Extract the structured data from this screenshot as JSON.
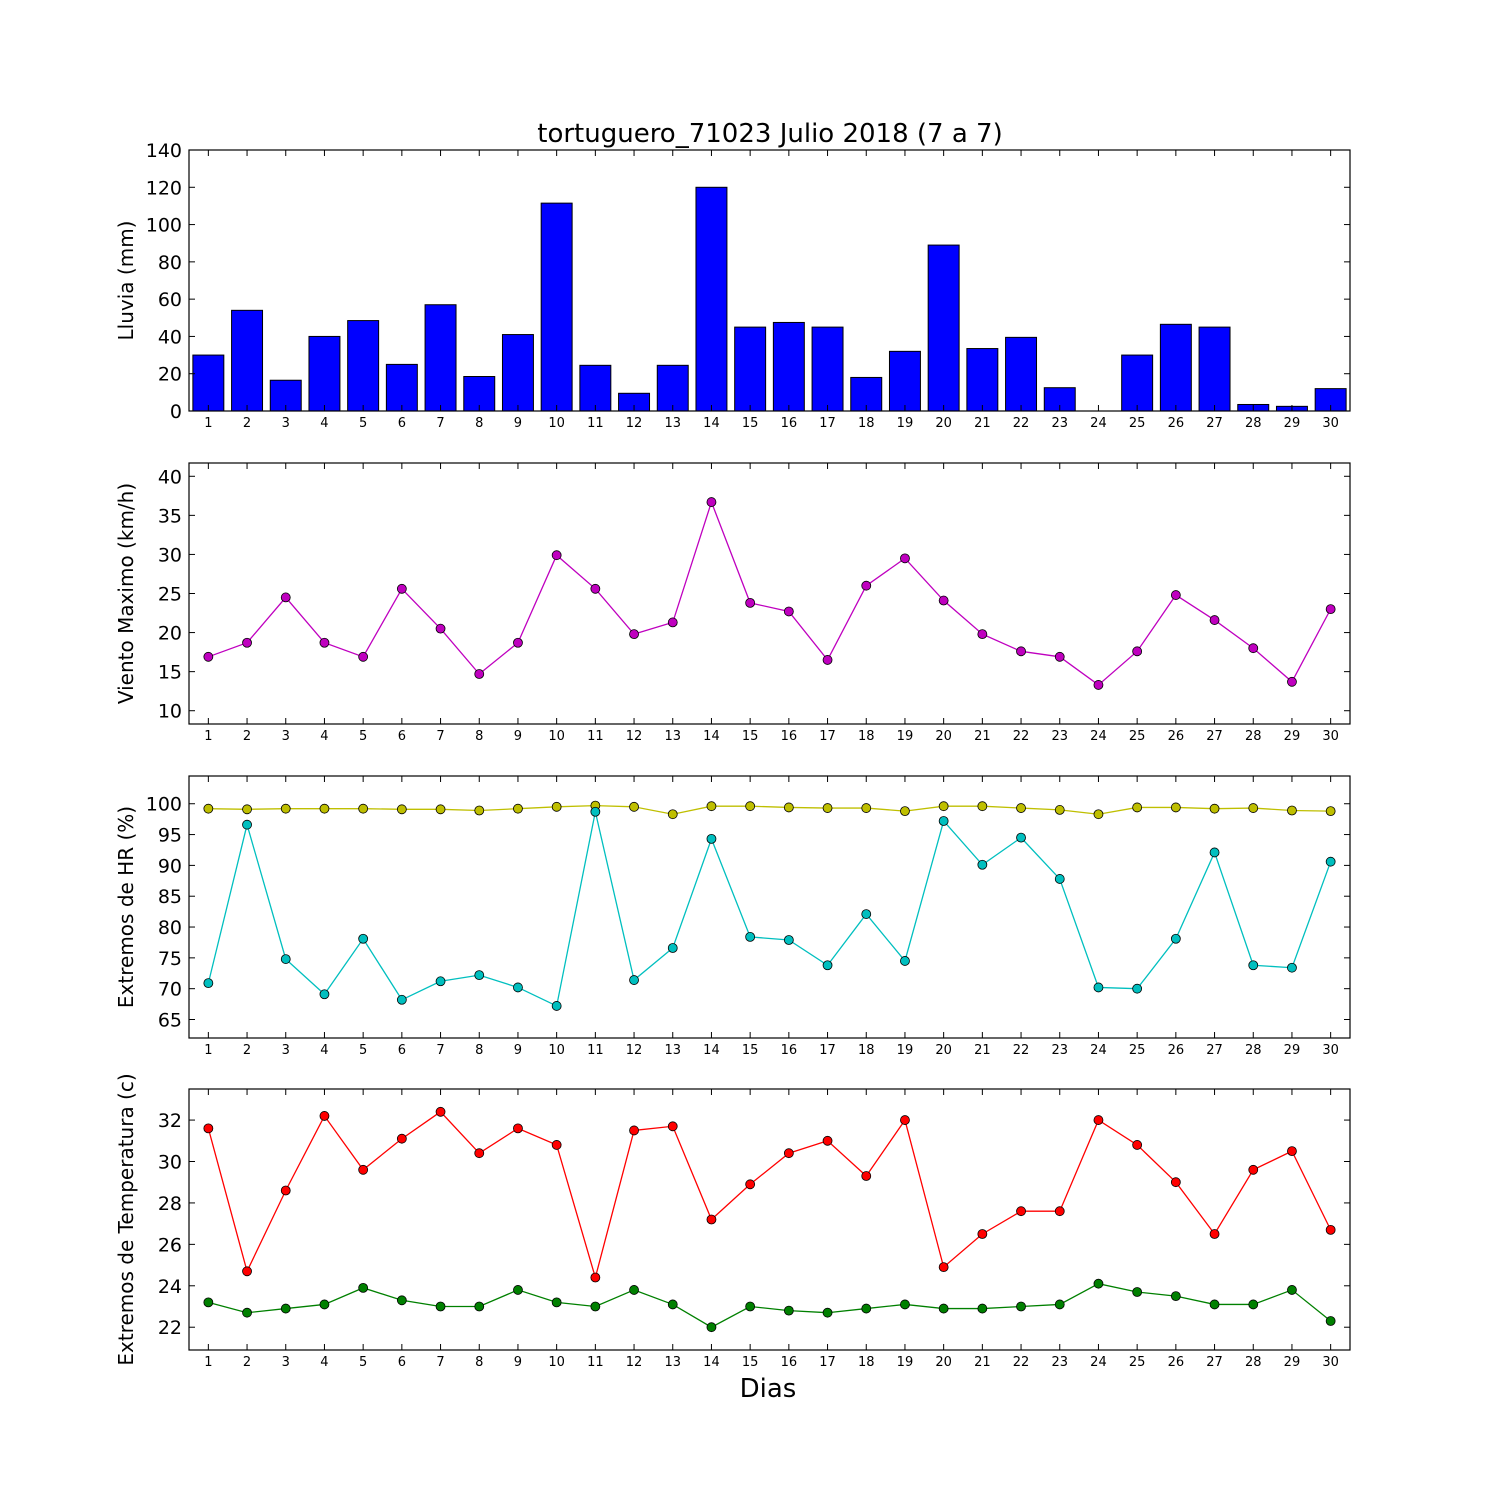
{
  "figure": {
    "title": "tortuguero_71023 Julio 2018  (7 a 7)",
    "xlabel": "Dias"
  },
  "chart_data": [
    {
      "type": "bar",
      "ylabel": "Lluvia (mm)",
      "ylim": [
        0,
        140
      ],
      "yticks": [
        0,
        20,
        40,
        60,
        80,
        100,
        120,
        140
      ],
      "categories": [
        "1",
        "2",
        "3",
        "4",
        "5",
        "6",
        "7",
        "8",
        "9",
        "10",
        "11",
        "12",
        "13",
        "14",
        "15",
        "16",
        "17",
        "18",
        "19",
        "20",
        "21",
        "22",
        "23",
        "24",
        "25",
        "26",
        "27",
        "28",
        "29",
        "30"
      ],
      "series": [
        {
          "values": [
            30,
            54,
            16.5,
            40,
            48.5,
            25,
            57,
            18.5,
            41,
            111.5,
            24.5,
            9.5,
            24.5,
            120,
            45,
            47.5,
            45,
            18,
            32,
            89,
            33.5,
            39.5,
            12.5,
            0,
            30,
            46.5,
            45,
            3.5,
            2.5,
            12
          ],
          "color": "#0000ff"
        }
      ],
      "grid": false
    },
    {
      "type": "line",
      "ylabel": "Viento Maximo (km/h)",
      "ylim": [
        8.3,
        41.7
      ],
      "yticks": [
        10,
        15,
        20,
        25,
        30,
        35,
        40
      ],
      "x": [
        1,
        2,
        3,
        4,
        5,
        6,
        7,
        8,
        9,
        10,
        11,
        12,
        13,
        14,
        15,
        16,
        17,
        18,
        19,
        20,
        21,
        22,
        23,
        24,
        25,
        26,
        27,
        28,
        29,
        30
      ],
      "series": [
        {
          "values": [
            16.9,
            18.7,
            24.5,
            18.7,
            16.9,
            25.6,
            20.5,
            14.7,
            18.7,
            29.9,
            25.6,
            19.8,
            21.3,
            36.7,
            23.8,
            22.7,
            16.5,
            26.0,
            29.5,
            24.1,
            19.8,
            17.6,
            16.9,
            13.3,
            17.6,
            24.8,
            21.6,
            18.0,
            13.7,
            23.0
          ],
          "color": "#bf00bf"
        }
      ],
      "grid": false
    },
    {
      "type": "line",
      "ylabel": "Extremos de HR (%)",
      "ylim": [
        62,
        104.5
      ],
      "yticks": [
        65,
        70,
        75,
        80,
        85,
        90,
        95,
        100
      ],
      "x": [
        1,
        2,
        3,
        4,
        5,
        6,
        7,
        8,
        9,
        10,
        11,
        12,
        13,
        14,
        15,
        16,
        17,
        18,
        19,
        20,
        21,
        22,
        23,
        24,
        25,
        26,
        27,
        28,
        29,
        30
      ],
      "series": [
        {
          "values": [
            99.2,
            99.1,
            99.2,
            99.2,
            99.2,
            99.1,
            99.1,
            98.9,
            99.2,
            99.5,
            99.7,
            99.5,
            98.3,
            99.6,
            99.6,
            99.4,
            99.3,
            99.3,
            98.8,
            99.6,
            99.6,
            99.3,
            99.0,
            98.3,
            99.4,
            99.4,
            99.2,
            99.3,
            98.9,
            98.8
          ],
          "color": "#bfbf00"
        },
        {
          "values": [
            70.9,
            96.6,
            74.8,
            69.1,
            78.1,
            68.2,
            71.2,
            72.2,
            70.2,
            67.2,
            98.7,
            71.4,
            76.6,
            94.3,
            78.4,
            77.9,
            73.8,
            82.1,
            74.5,
            97.2,
            90.1,
            94.5,
            87.8,
            70.2,
            70.0,
            78.1,
            92.1,
            73.8,
            73.4,
            90.6
          ],
          "color": "#00bfbf"
        }
      ],
      "grid": false
    },
    {
      "type": "line",
      "ylabel": "Extremos de Temperatura (c)",
      "ylim": [
        20.9,
        33.5
      ],
      "yticks": [
        22,
        24,
        26,
        28,
        30,
        32
      ],
      "x": [
        1,
        2,
        3,
        4,
        5,
        6,
        7,
        8,
        9,
        10,
        11,
        12,
        13,
        14,
        15,
        16,
        17,
        18,
        19,
        20,
        21,
        22,
        23,
        24,
        25,
        26,
        27,
        28,
        29,
        30
      ],
      "series": [
        {
          "values": [
            31.6,
            24.7,
            28.6,
            32.2,
            29.6,
            31.1,
            32.4,
            30.4,
            31.6,
            30.8,
            24.4,
            31.5,
            31.7,
            27.2,
            28.9,
            30.4,
            31.0,
            29.3,
            32.0,
            24.9,
            26.5,
            27.6,
            27.6,
            32.0,
            30.8,
            29.0,
            26.5,
            29.6,
            30.5,
            26.7
          ],
          "color": "#ff0000"
        },
        {
          "values": [
            23.2,
            22.7,
            22.9,
            23.1,
            23.9,
            23.3,
            23.0,
            23.0,
            23.8,
            23.2,
            23.0,
            23.8,
            23.1,
            22.0,
            23.0,
            22.8,
            22.7,
            22.9,
            23.1,
            22.9,
            22.9,
            23.0,
            23.1,
            24.1,
            23.7,
            23.5,
            23.1,
            23.1,
            23.8,
            22.3
          ],
          "color": "#008000"
        }
      ],
      "grid": false
    }
  ]
}
